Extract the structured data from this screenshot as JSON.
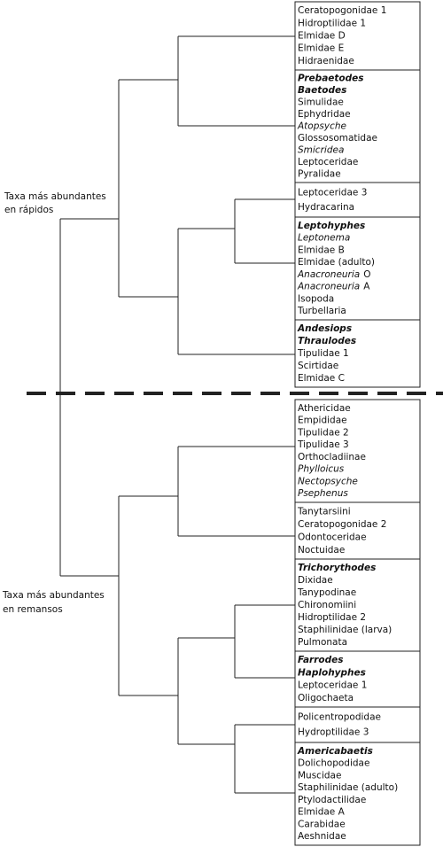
{
  "labels": {
    "upper": [
      "Taxa más abundantes",
      "en rápidos"
    ],
    "lower": [
      "Taxa más abundantes",
      "en remansos"
    ]
  },
  "groups": [
    {
      "items": [
        {
          "text": "Ceratopogonidae 1"
        },
        {
          "text": "Hidroptilidae 1"
        },
        {
          "text": "Elmidae D"
        },
        {
          "text": "Elmidae E"
        },
        {
          "text": "Hidraenidae"
        }
      ]
    },
    {
      "items": [
        {
          "text": "Prebaetodes",
          "style": "bold italic"
        },
        {
          "text": "Baetodes",
          "style": "bold italic"
        },
        {
          "text": "Simulidae"
        },
        {
          "text": "Ephydridae"
        },
        {
          "text": "Atopsyche",
          "style": "italic"
        },
        {
          "text": "Glossosomatidae"
        },
        {
          "text": "Smicridea",
          "style": "italic"
        },
        {
          "text": "Leptoceridae"
        },
        {
          "text": "Pyralidae"
        }
      ]
    },
    {
      "items": [
        {
          "text": "Leptoceridae 3"
        },
        {
          "text": "Hydracarina"
        }
      ]
    },
    {
      "items": [
        {
          "text": "Leptohyphes",
          "style": "bold italic"
        },
        {
          "text": "Leptonema",
          "style": "italic"
        },
        {
          "text": "Elmidae B"
        },
        {
          "text": "Elmidae (adulto)"
        },
        {
          "text": "Anacroneuria",
          "style": "italic",
          "suffix": "O"
        },
        {
          "text": "Anacroneuria",
          "style": "italic",
          "suffix": "A"
        },
        {
          "text": "Isopoda"
        },
        {
          "text": "Turbellaria"
        }
      ]
    },
    {
      "items": [
        {
          "text": "Andesiops",
          "style": "bold italic"
        },
        {
          "text": "Thraulodes",
          "style": "bold italic"
        },
        {
          "text": "Tipulidae 1"
        },
        {
          "text": "Scirtidae"
        },
        {
          "text": "Elmidae C"
        }
      ]
    },
    {
      "items": [
        {
          "text": "Athericidae"
        },
        {
          "text": "Empididae"
        },
        {
          "text": "Tipulidae 2"
        },
        {
          "text": "Tipulidae 3"
        },
        {
          "text": "Orthocladiinae"
        },
        {
          "text": "Phylloicus",
          "style": "italic"
        },
        {
          "text": "Nectopsyche",
          "style": "italic"
        },
        {
          "text": "Psephenus",
          "style": "italic"
        }
      ]
    },
    {
      "items": [
        {
          "text": "Tanytarsiini"
        },
        {
          "text": "Ceratopogonidae 2"
        },
        {
          "text": "Odontoceridae"
        },
        {
          "text": "Noctuidae"
        }
      ]
    },
    {
      "items": [
        {
          "text": "Trichorythodes",
          "style": "bold italic"
        },
        {
          "text": "Dixidae"
        },
        {
          "text": "Tanypodinae"
        },
        {
          "text": "Chironomiini"
        },
        {
          "text": "Hidroptilidae 2"
        },
        {
          "text": "Staphilinidae (larva)"
        },
        {
          "text": "Pulmonata"
        }
      ]
    },
    {
      "items": [
        {
          "text": "Farrodes",
          "style": "bold italic"
        },
        {
          "text": "Haplohyphes",
          "style": "bold italic"
        },
        {
          "text": "Leptoceridae 1"
        },
        {
          "text": "Oligochaeta"
        }
      ]
    },
    {
      "items": [
        {
          "text": "Policentropodidae"
        },
        {
          "text": "Hydroptilidae 3"
        }
      ]
    },
    {
      "items": [
        {
          "text": "Americabaetis",
          "style": "bold italic"
        },
        {
          "text": "Dolichopodidae"
        },
        {
          "text": "Muscidae"
        },
        {
          "text": "Staphilinidae (adulto)"
        },
        {
          "text": "Ptylodactilidae"
        },
        {
          "text": "Elmidae A"
        },
        {
          "text": "Carabidae"
        },
        {
          "text": "Aeshnidae"
        }
      ]
    }
  ]
}
